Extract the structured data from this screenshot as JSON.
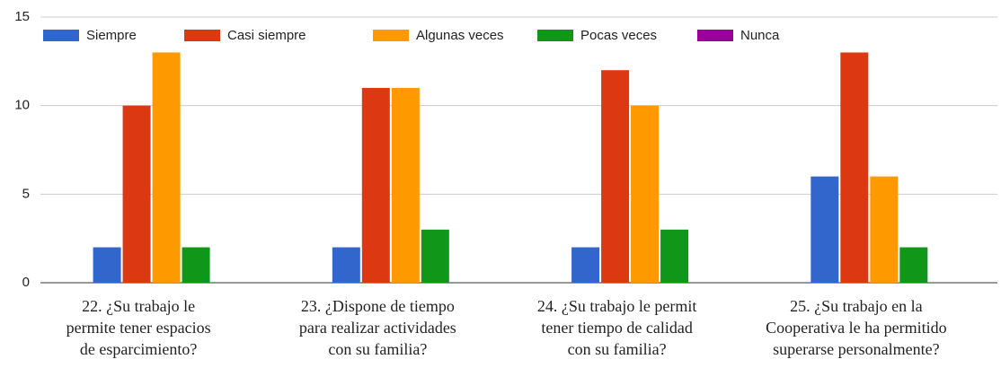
{
  "chart_data": {
    "type": "bar",
    "categories": [
      [
        "22. ¿Su trabajo le",
        "permite tener espacios",
        "de esparcimiento?"
      ],
      [
        "23. ¿Dispone de tiempo",
        "para realizar actividades",
        "con su familia?"
      ],
      [
        "24. ¿Su trabajo le permit",
        "tener tiempo de calidad",
        "con su familia?"
      ],
      [
        "25. ¿Su trabajo en la",
        "Cooperativa le ha permitido",
        "superarse personalmente?"
      ]
    ],
    "series": [
      {
        "name": "Siempre",
        "color": "#3366cc",
        "values": [
          2,
          2,
          2,
          6
        ]
      },
      {
        "name": "Casi siempre",
        "color": "#dc3912",
        "values": [
          10,
          11,
          12,
          13
        ]
      },
      {
        "name": "Algunas veces",
        "color": "#ff9900",
        "values": [
          13,
          11,
          10,
          6
        ]
      },
      {
        "name": "Pocas veces",
        "color": "#109618",
        "values": [
          2,
          3,
          3,
          2
        ]
      },
      {
        "name": "Nunca",
        "color": "#990099",
        "values": [
          0,
          0,
          0,
          0
        ]
      }
    ],
    "ylim": [
      0,
      15
    ],
    "yticks": [
      0,
      5,
      10,
      15
    ],
    "grid": true,
    "legend": "top"
  }
}
